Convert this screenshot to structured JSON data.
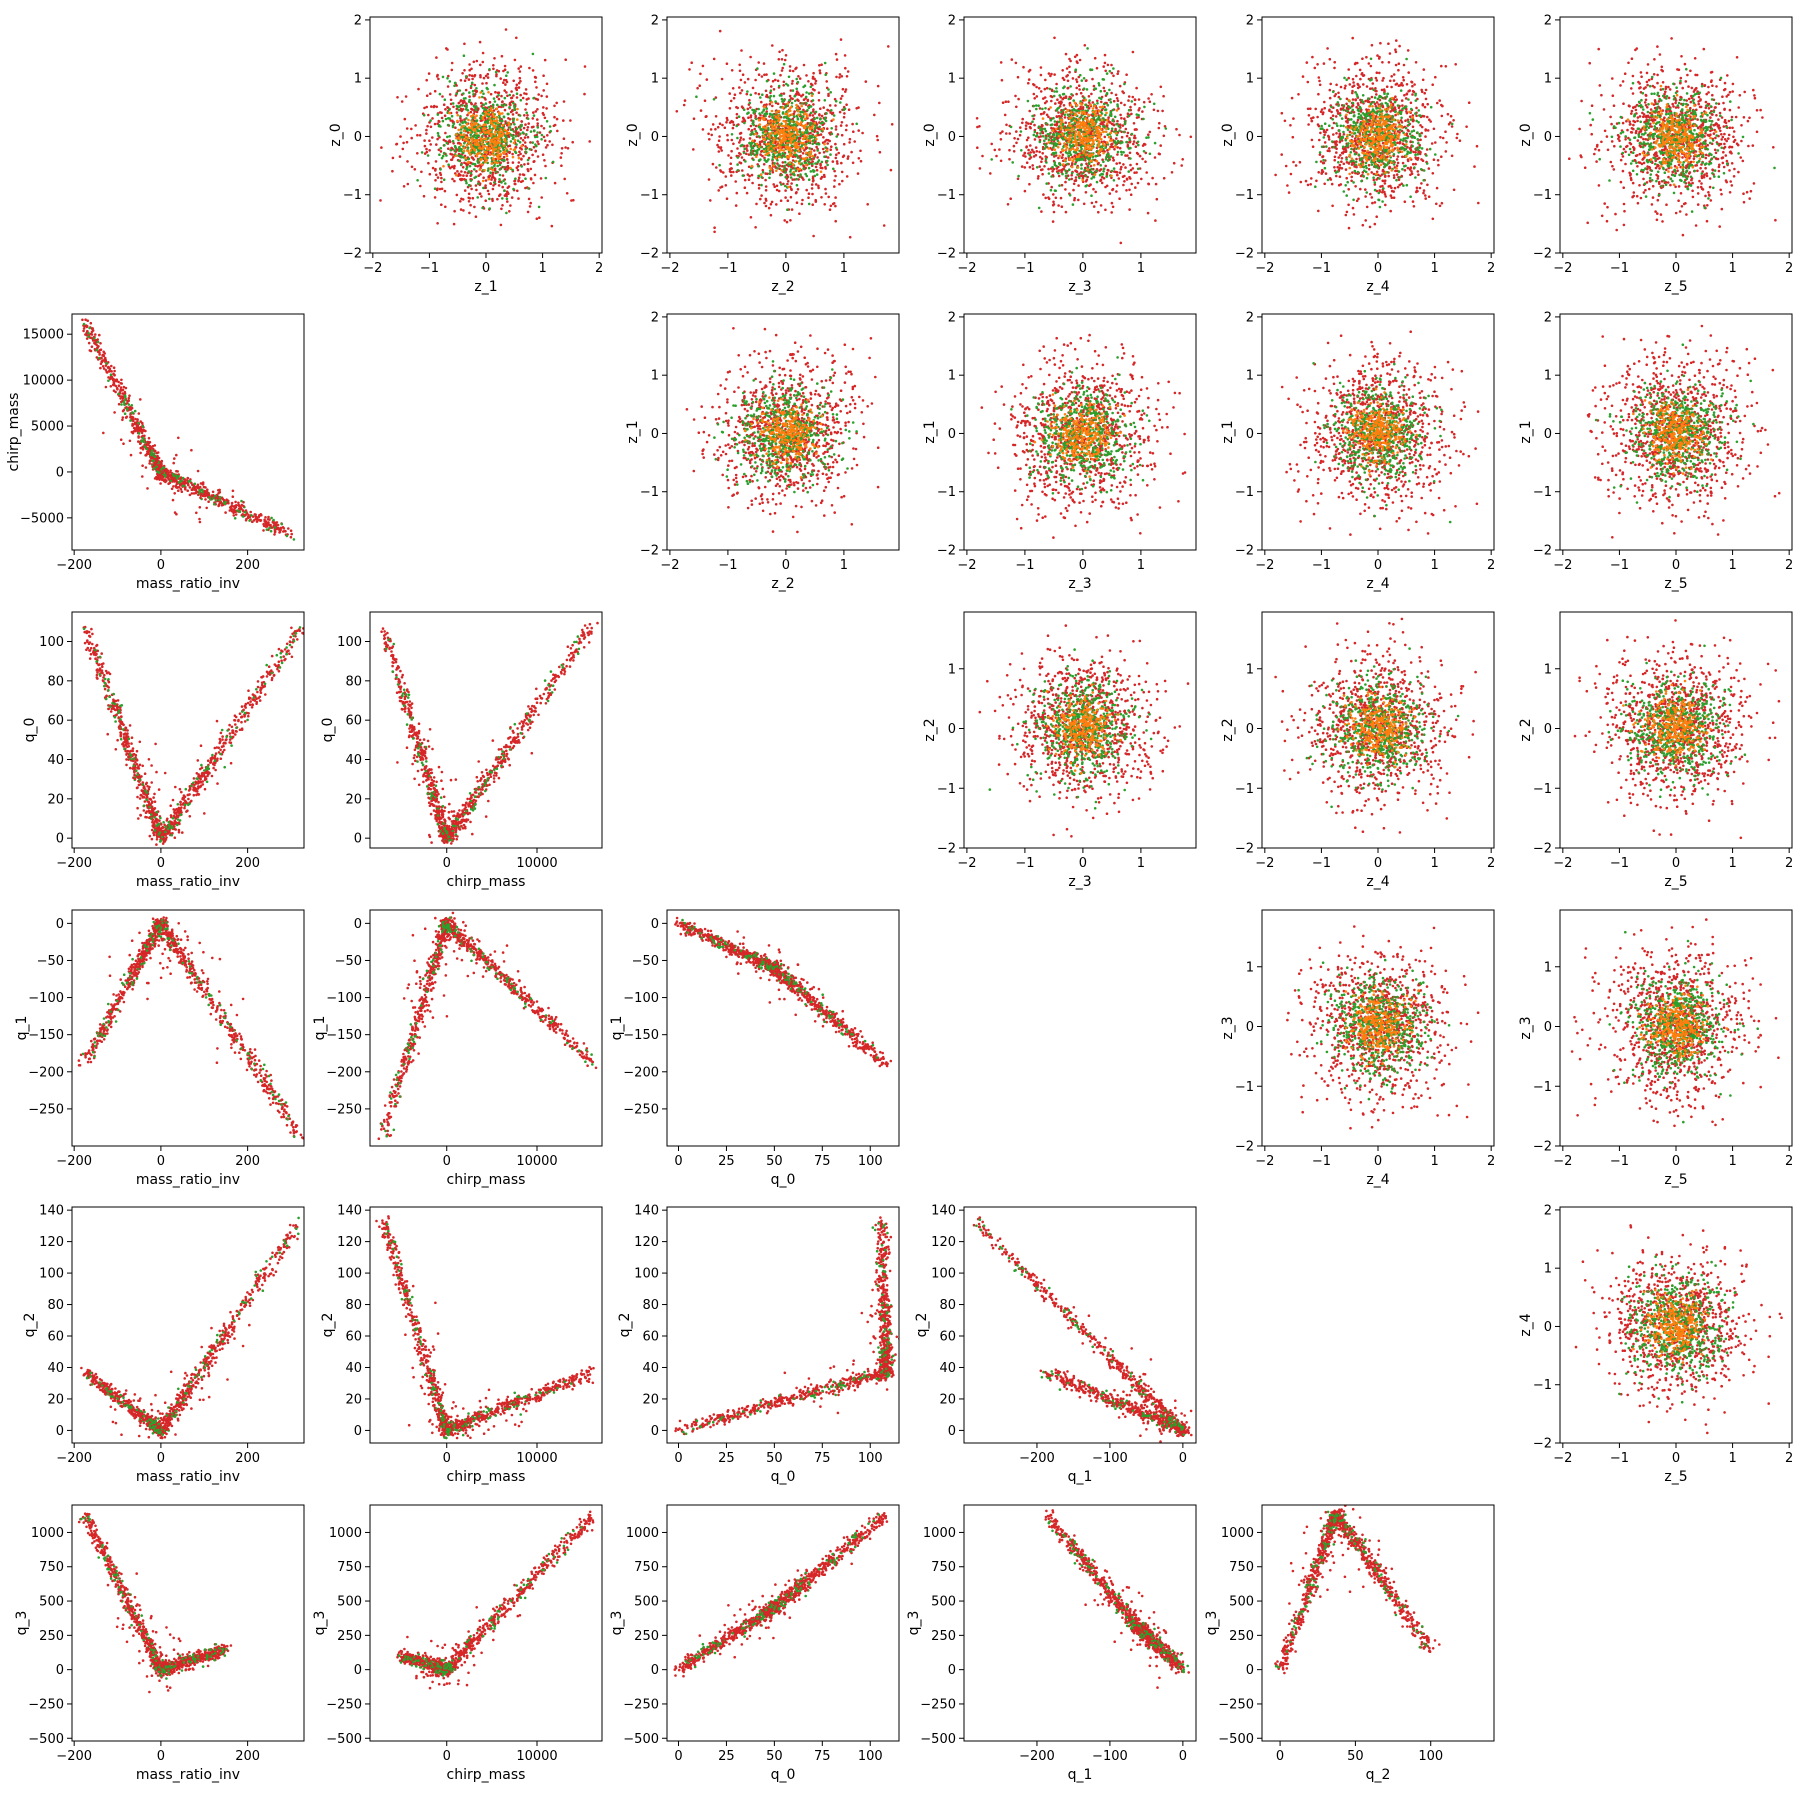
{
  "chart_data": {
    "type": "scatter",
    "layout": "lower-and-upper-triangle-pair-grid",
    "colors": {
      "red": "#d62728",
      "green": "#2ca02c",
      "orange": "#ff7f0e"
    },
    "lower_panels": [
      {
        "xlabel": "mass_ratio_inv",
        "ylabel": "chirp_mass",
        "xticks": [
          -200,
          0,
          200
        ],
        "yticks": [
          15000,
          10000,
          5000,
          0,
          -5000
        ],
        "xlim": [
          -205,
          330
        ],
        "ylim": [
          -8500,
          17200
        ],
        "shape": [
          {
            "x": -175,
            "y": 16200
          },
          {
            "x": 0,
            "y": 0
          },
          {
            "x": 300,
            "y": -6900
          }
        ]
      },
      {
        "xlabel": "mass_ratio_inv",
        "ylabel": "q_0",
        "xticks": [
          -200,
          0,
          200
        ],
        "yticks": [
          0,
          20,
          40,
          60,
          80,
          100
        ],
        "xlim": [
          -205,
          330
        ],
        "ylim": [
          -5,
          115
        ],
        "shape": [
          {
            "x": -175,
            "y": 108
          },
          {
            "x": 0,
            "y": 0
          },
          {
            "x": 320,
            "y": 106
          }
        ]
      },
      {
        "xlabel": "chirp_mass",
        "ylabel": "q_0",
        "xticks": [
          0,
          10000
        ],
        "yticks": [
          0,
          20,
          40,
          60,
          80,
          100
        ],
        "xlim": [
          -8500,
          17200
        ],
        "ylim": [
          -5,
          115
        ],
        "shape": [
          {
            "x": -7000,
            "y": 106
          },
          {
            "x": 0,
            "y": 0
          },
          {
            "x": 16200,
            "y": 109
          }
        ]
      },
      {
        "xlabel": "mass_ratio_inv",
        "ylabel": "q_1",
        "xticks": [
          -200,
          0,
          200
        ],
        "yticks": [
          0,
          -50,
          -100,
          -150,
          -200,
          -250
        ],
        "xlim": [
          -205,
          330
        ],
        "ylim": [
          -300,
          18
        ],
        "shape": [
          {
            "x": -175,
            "y": -188
          },
          {
            "x": 0,
            "y": 0
          },
          {
            "x": 320,
            "y": -285
          }
        ]
      },
      {
        "xlabel": "chirp_mass",
        "ylabel": "q_1",
        "xticks": [
          0,
          10000
        ],
        "yticks": [
          0,
          -50,
          -100,
          -150,
          -200,
          -250
        ],
        "xlim": [
          -8500,
          17200
        ],
        "ylim": [
          -300,
          18
        ],
        "shape": [
          {
            "x": -7000,
            "y": -285
          },
          {
            "x": 0,
            "y": 0
          },
          {
            "x": 16200,
            "y": -188
          }
        ]
      },
      {
        "xlabel": "q_0",
        "ylabel": "q_1",
        "xticks": [
          0,
          25,
          50,
          75,
          100
        ],
        "yticks": [
          0,
          -50,
          -100,
          -150,
          -200,
          -250
        ],
        "xlim": [
          -6,
          115
        ],
        "ylim": [
          -300,
          18
        ],
        "shape": [
          {
            "x": 0,
            "y": 0
          },
          {
            "x": 50,
            "y": -60
          },
          {
            "x": 108,
            "y": -190
          }
        ]
      },
      {
        "xlabel": "mass_ratio_inv",
        "ylabel": "q_2",
        "xticks": [
          -200,
          0,
          200
        ],
        "yticks": [
          0,
          20,
          40,
          60,
          80,
          100,
          120,
          140
        ],
        "xlim": [
          -205,
          330
        ],
        "ylim": [
          -8,
          142
        ],
        "shape": [
          {
            "x": -175,
            "y": 37
          },
          {
            "x": 0,
            "y": 0
          },
          {
            "x": 320,
            "y": 133
          }
        ]
      },
      {
        "xlabel": "chirp_mass",
        "ylabel": "q_2",
        "xticks": [
          0,
          10000
        ],
        "yticks": [
          0,
          20,
          40,
          60,
          80,
          100,
          120,
          140
        ],
        "xlim": [
          -8500,
          17200
        ],
        "ylim": [
          -8,
          142
        ],
        "shape": [
          {
            "x": -7000,
            "y": 133
          },
          {
            "x": 0,
            "y": 0
          },
          {
            "x": 16200,
            "y": 37
          }
        ]
      },
      {
        "xlabel": "q_0",
        "ylabel": "q_2",
        "xticks": [
          0,
          25,
          50,
          75,
          100
        ],
        "yticks": [
          0,
          20,
          40,
          60,
          80,
          100,
          120,
          140
        ],
        "xlim": [
          -6,
          115
        ],
        "ylim": [
          -8,
          142
        ],
        "shape": [
          {
            "x": 0,
            "y": 0
          },
          {
            "x": 108,
            "y": 37
          },
          {
            "x": 106,
            "y": 133
          }
        ]
      },
      {
        "xlabel": "q_1",
        "ylabel": "q_2",
        "xticks": [
          -200,
          -100,
          0
        ],
        "yticks": [
          0,
          20,
          40,
          60,
          80,
          100,
          120,
          140
        ],
        "xlim": [
          -300,
          18
        ],
        "ylim": [
          -8,
          142
        ],
        "shape": [
          {
            "x": -285,
            "y": 133
          },
          {
            "x": 0,
            "y": 0
          },
          {
            "x": -188,
            "y": 37
          }
        ]
      },
      {
        "xlabel": "mass_ratio_inv",
        "ylabel": "q_3",
        "xticks": [
          -200,
          0,
          200
        ],
        "yticks": [
          1000,
          750,
          500,
          250,
          0,
          -250,
          -500
        ],
        "xlim": [
          -205,
          330
        ],
        "ylim": [
          -520,
          1200
        ],
        "shape": [
          {
            "x": -175,
            "y": 1130
          },
          {
            "x": 0,
            "y": 0
          },
          {
            "x": 150,
            "y": 150
          }
        ]
      },
      {
        "xlabel": "chirp_mass",
        "ylabel": "q_3",
        "xticks": [
          0,
          10000
        ],
        "yticks": [
          1000,
          750,
          500,
          250,
          0,
          -250,
          -500
        ],
        "xlim": [
          -8500,
          17200
        ],
        "ylim": [
          -520,
          1200
        ],
        "shape": [
          {
            "x": -5000,
            "y": 100
          },
          {
            "x": 0,
            "y": 0
          },
          {
            "x": 16200,
            "y": 1130
          }
        ]
      },
      {
        "xlabel": "q_0",
        "ylabel": "q_3",
        "xticks": [
          0,
          25,
          50,
          75,
          100
        ],
        "yticks": [
          1000,
          750,
          500,
          250,
          0,
          -250,
          -500
        ],
        "xlim": [
          -6,
          115
        ],
        "ylim": [
          -520,
          1200
        ],
        "shape": [
          {
            "x": 0,
            "y": 0
          },
          {
            "x": 50,
            "y": 450
          },
          {
            "x": 108,
            "y": 1130
          }
        ]
      },
      {
        "xlabel": "q_1",
        "ylabel": "q_3",
        "xticks": [
          -200,
          -100,
          0
        ],
        "yticks": [
          1000,
          750,
          500,
          250,
          0,
          -250,
          -500
        ],
        "xlim": [
          -300,
          18
        ],
        "ylim": [
          -520,
          1200
        ],
        "shape": [
          {
            "x": -188,
            "y": 1130
          },
          {
            "x": -60,
            "y": 300
          },
          {
            "x": 0,
            "y": 0
          }
        ]
      },
      {
        "xlabel": "q_2",
        "ylabel": "q_3",
        "xticks": [
          0,
          50,
          100
        ],
        "yticks": [
          1000,
          750,
          500,
          250,
          0,
          -250,
          -500
        ],
        "xlim": [
          -12,
          142
        ],
        "ylim": [
          -520,
          1200
        ],
        "shape": [
          {
            "x": 0,
            "y": 0
          },
          {
            "x": 37,
            "y": 1130
          },
          {
            "x": 100,
            "y": 150
          }
        ]
      }
    ],
    "upper_panels": [
      {
        "xlabel": "z_1",
        "ylabel": "z_0",
        "xticks": [
          -2,
          -1,
          0,
          1,
          2
        ],
        "yticks": [
          -2,
          -1,
          0,
          1,
          2
        ],
        "xlim": [
          -2.05,
          2.05
        ],
        "ylim": [
          -2.0,
          2.05
        ]
      },
      {
        "xlabel": "z_2",
        "ylabel": "z_0",
        "xticks": [
          -2,
          -1,
          0,
          1
        ],
        "yticks": [
          -2,
          -1,
          0,
          1,
          2
        ],
        "xlim": [
          -2.05,
          1.95
        ],
        "ylim": [
          -2.0,
          2.05
        ]
      },
      {
        "xlabel": "z_3",
        "ylabel": "z_0",
        "xticks": [
          -2,
          -1,
          0,
          1
        ],
        "yticks": [
          -2,
          -1,
          0,
          1,
          2
        ],
        "xlim": [
          -2.05,
          1.95
        ],
        "ylim": [
          -2.0,
          2.05
        ]
      },
      {
        "xlabel": "z_4",
        "ylabel": "z_0",
        "xticks": [
          -2,
          -1,
          0,
          1,
          2
        ],
        "yticks": [
          -2,
          -1,
          0,
          1,
          2
        ],
        "xlim": [
          -2.05,
          2.05
        ],
        "ylim": [
          -2.0,
          2.05
        ]
      },
      {
        "xlabel": "z_5",
        "ylabel": "z_0",
        "xticks": [
          -2,
          -1,
          0,
          1,
          2
        ],
        "yticks": [
          -2,
          -1,
          0,
          1,
          2
        ],
        "xlim": [
          -2.05,
          2.05
        ],
        "ylim": [
          -2.0,
          2.05
        ]
      },
      {
        "xlabel": "z_2",
        "ylabel": "z_1",
        "xticks": [
          -2,
          -1,
          0,
          1
        ],
        "yticks": [
          -2,
          -1,
          0,
          1,
          2
        ],
        "xlim": [
          -2.05,
          1.95
        ],
        "ylim": [
          -2.0,
          2.05
        ]
      },
      {
        "xlabel": "z_3",
        "ylabel": "z_1",
        "xticks": [
          -2,
          -1,
          0,
          1
        ],
        "yticks": [
          -2,
          -1,
          0,
          1,
          2
        ],
        "xlim": [
          -2.05,
          1.95
        ],
        "ylim": [
          -2.0,
          2.05
        ]
      },
      {
        "xlabel": "z_4",
        "ylabel": "z_1",
        "xticks": [
          -2,
          -1,
          0,
          1,
          2
        ],
        "yticks": [
          -2,
          -1,
          0,
          1,
          2
        ],
        "xlim": [
          -2.05,
          2.05
        ],
        "ylim": [
          -2.0,
          2.05
        ]
      },
      {
        "xlabel": "z_5",
        "ylabel": "z_1",
        "xticks": [
          -2,
          -1,
          0,
          1,
          2
        ],
        "yticks": [
          -2,
          -1,
          0,
          1,
          2
        ],
        "xlim": [
          -2.05,
          2.05
        ],
        "ylim": [
          -2.0,
          2.05
        ]
      },
      {
        "xlabel": "z_3",
        "ylabel": "z_2",
        "xticks": [
          -2,
          -1,
          0,
          1
        ],
        "yticks": [
          -2,
          -1,
          0,
          1
        ],
        "xlim": [
          -2.05,
          1.95
        ],
        "ylim": [
          -2.0,
          1.95
        ]
      },
      {
        "xlabel": "z_4",
        "ylabel": "z_2",
        "xticks": [
          -2,
          -1,
          0,
          1,
          2
        ],
        "yticks": [
          -2,
          -1,
          0,
          1
        ],
        "xlim": [
          -2.05,
          2.05
        ],
        "ylim": [
          -2.0,
          1.95
        ]
      },
      {
        "xlabel": "z_5",
        "ylabel": "z_2",
        "xticks": [
          -2,
          -1,
          0,
          1,
          2
        ],
        "yticks": [
          -2,
          -1,
          0,
          1
        ],
        "xlim": [
          -2.05,
          2.05
        ],
        "ylim": [
          -2.0,
          1.95
        ]
      },
      {
        "xlabel": "z_4",
        "ylabel": "z_3",
        "xticks": [
          -2,
          -1,
          0,
          1,
          2
        ],
        "yticks": [
          -2,
          -1,
          0,
          1
        ],
        "xlim": [
          -2.05,
          2.05
        ],
        "ylim": [
          -2.0,
          1.95
        ]
      },
      {
        "xlabel": "z_5",
        "ylabel": "z_3",
        "xticks": [
          -2,
          -1,
          0,
          1,
          2
        ],
        "yticks": [
          -2,
          -1,
          0,
          1
        ],
        "xlim": [
          -2.05,
          2.05
        ],
        "ylim": [
          -2.0,
          1.95
        ]
      },
      {
        "xlabel": "z_5",
        "ylabel": "z_4",
        "xticks": [
          -2,
          -1,
          0,
          1,
          2
        ],
        "yticks": [
          -2,
          -1,
          0,
          1,
          2
        ],
        "xlim": [
          -2.05,
          2.05
        ],
        "ylim": [
          -2.0,
          2.05
        ]
      }
    ]
  }
}
